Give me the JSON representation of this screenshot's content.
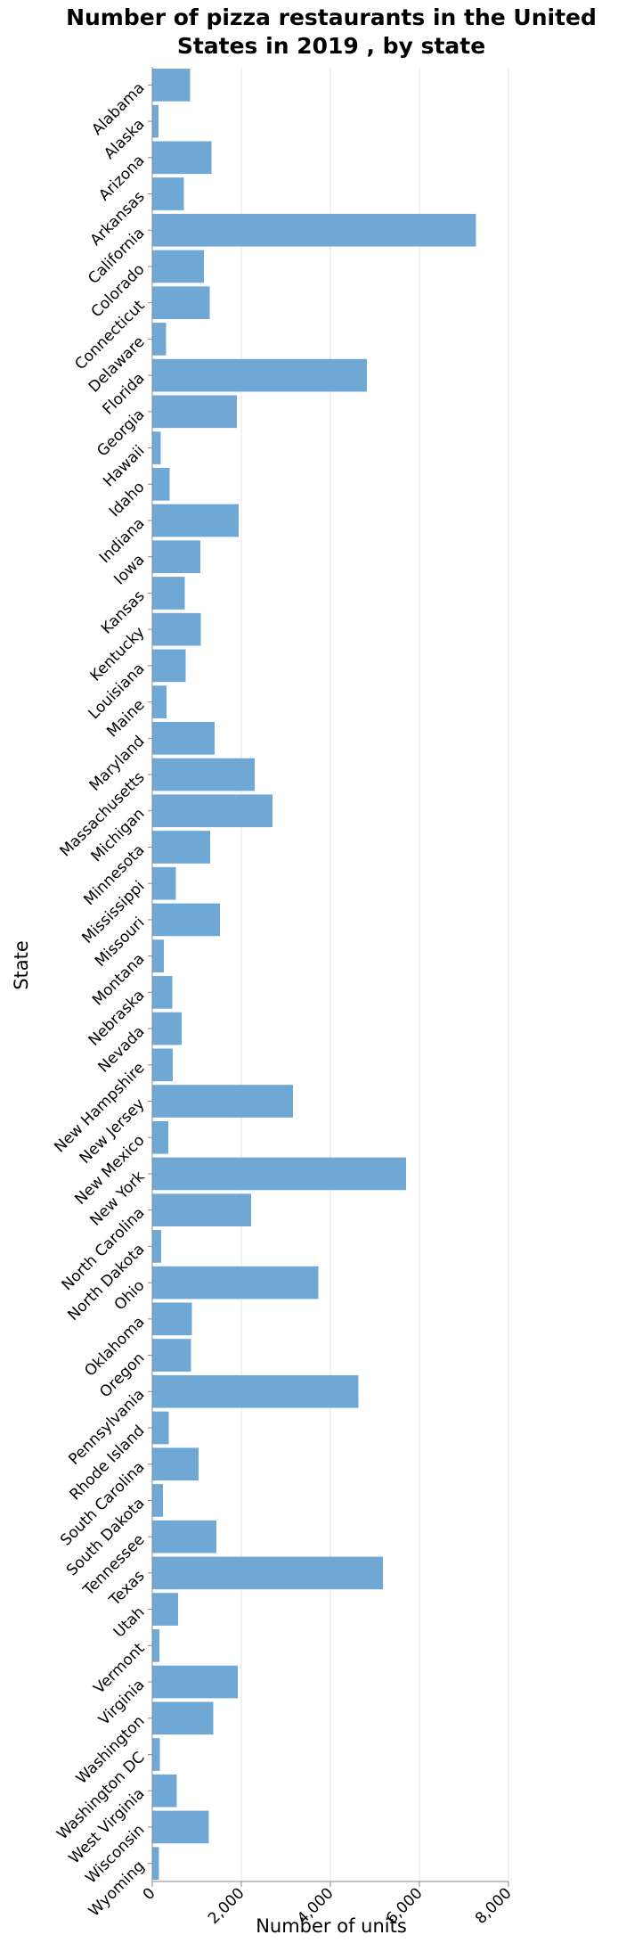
{
  "chart_data": {
    "type": "bar",
    "orientation": "horizontal",
    "title_lines": [
      "Number of pizza restaurants in the United",
      "States in 2019 , by state"
    ],
    "xlabel": "Number of units",
    "ylabel": "State",
    "xlim": [
      0,
      8000
    ],
    "xticks": [
      0,
      2000,
      4000,
      6000,
      8000
    ],
    "xtick_labels": [
      "0",
      "2,000",
      "4,000",
      "6,000",
      "8,000"
    ],
    "grid": true,
    "bar_color": "#6fa8d4",
    "categories": [
      "Alabama",
      "Alaska",
      "Arizona",
      "Arkansas",
      "California",
      "Colorado",
      "Connecticut",
      "Delaware",
      "Florida",
      "Georgia",
      "Hawaii",
      "Idaho",
      "Indiana",
      "Iowa",
      "Kansas",
      "Kentucky",
      "Louisiana",
      "Maine",
      "Maryland",
      "Massachusetts",
      "Michigan",
      "Minnesota",
      "Mississippi",
      "Missouri",
      "Montana",
      "Nebraska",
      "Nevada",
      "New Hampshire",
      "New Jersey",
      "New Mexico",
      "New York",
      "North Carolina",
      "North Dakota",
      "Ohio",
      "Oklahoma",
      "Oregon",
      "Pennsylvania",
      "Rhode Island",
      "South Carolina",
      "South Dakota",
      "Tennessee",
      "Texas",
      "Utah",
      "Vermont",
      "Virginia",
      "Washington",
      "Washington DC",
      "West Virginia",
      "Wisconsin",
      "Wyoming"
    ],
    "values": [
      850,
      140,
      1330,
      710,
      7270,
      1160,
      1290,
      310,
      4820,
      1900,
      190,
      390,
      1940,
      1080,
      730,
      1090,
      750,
      320,
      1400,
      2300,
      2700,
      1300,
      530,
      1520,
      260,
      450,
      660,
      460,
      3160,
      360,
      5700,
      2220,
      200,
      3730,
      890,
      870,
      4630,
      370,
      1040,
      240,
      1440,
      5180,
      580,
      160,
      1920,
      1370,
      170,
      550,
      1270,
      150
    ]
  }
}
